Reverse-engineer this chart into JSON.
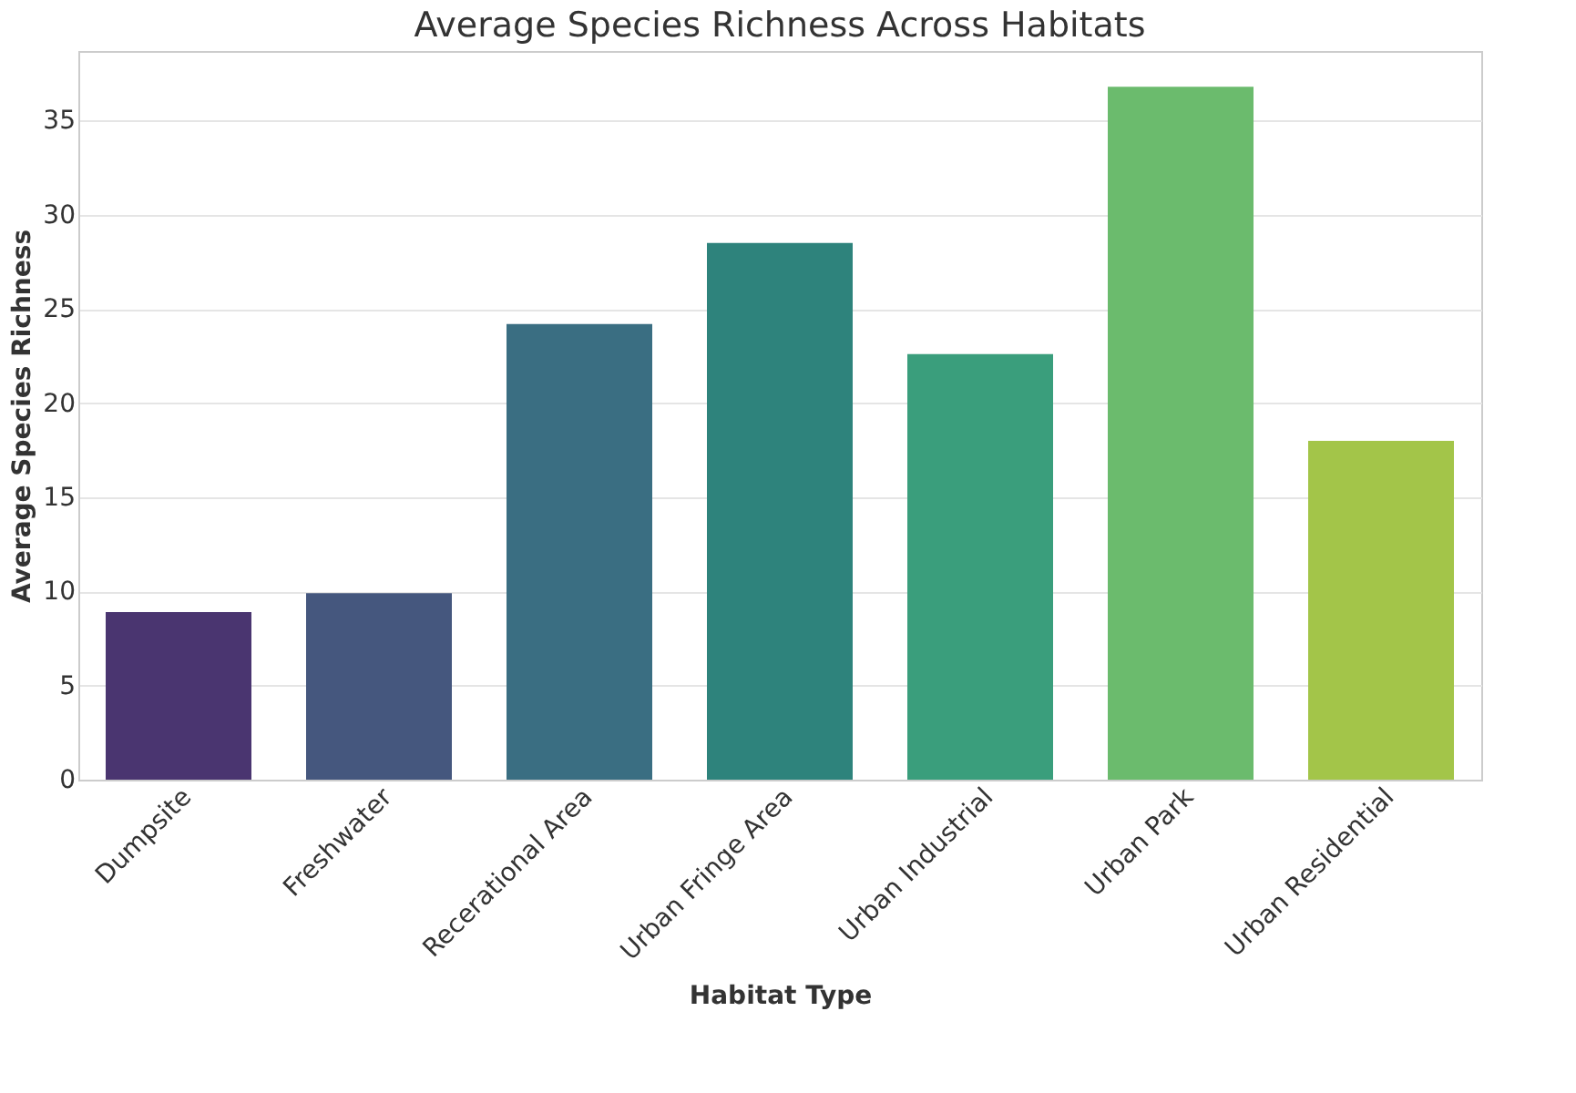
{
  "chart_data": {
    "type": "bar",
    "title": "Average Species Richness Across Habitats",
    "xlabel": "Habitat Type",
    "ylabel": "Average Species Richness",
    "categories": [
      "Dumpsite",
      "Freshwater",
      "Recerational Area",
      "Urban Fringe Area",
      "Urban Industrial",
      "Urban Park",
      "Urban Residential"
    ],
    "values": [
      8.9,
      9.9,
      24.2,
      28.5,
      22.6,
      36.8,
      18.0
    ],
    "colors": [
      "#4a3570",
      "#45577e",
      "#3a6e82",
      "#2e837c",
      "#3a9e7c",
      "#6bbb6d",
      "#a3c549"
    ],
    "ylim": [
      0,
      38.7
    ],
    "yticks": [
      0,
      5,
      10,
      15,
      20,
      25,
      30,
      35
    ],
    "grid": "y"
  }
}
